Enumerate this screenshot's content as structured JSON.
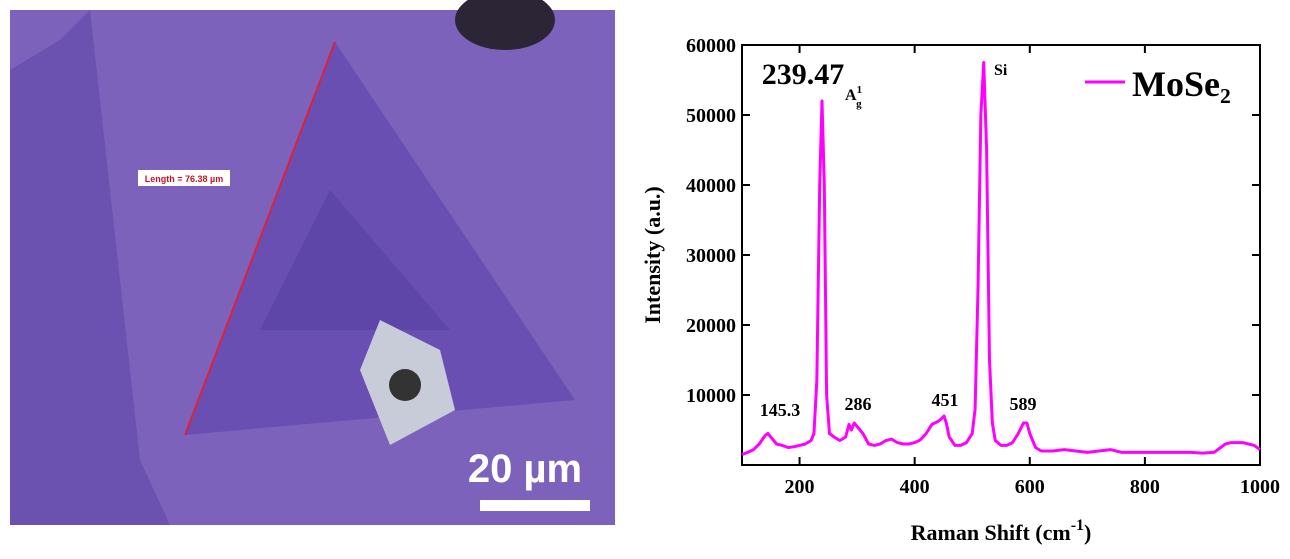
{
  "image": {
    "measurement_label": "Length = 76.38 µm",
    "scale_bar_label": "20 µm"
  },
  "chart_data": {
    "type": "line",
    "xlabel": {
      "text": "Raman Shift (cm",
      "sup": "-1",
      "tail": ")"
    },
    "ylabel": "Intensity (a.u.)",
    "x": [
      100,
      110,
      120,
      130,
      140,
      145,
      150,
      160,
      170,
      180,
      190,
      200,
      210,
      220,
      225,
      230,
      235,
      239,
      243,
      247,
      252,
      260,
      270,
      280,
      286,
      290,
      295,
      300,
      305,
      310,
      320,
      330,
      340,
      350,
      360,
      370,
      380,
      390,
      400,
      410,
      420,
      430,
      440,
      445,
      451,
      455,
      460,
      470,
      480,
      490,
      500,
      505,
      510,
      515,
      520,
      525,
      530,
      535,
      540,
      550,
      560,
      570,
      580,
      589,
      595,
      600,
      610,
      620,
      640,
      660,
      680,
      700,
      720,
      740,
      760,
      780,
      800,
      820,
      840,
      860,
      880,
      900,
      920,
      940,
      950,
      960,
      970,
      980,
      990,
      1000
    ],
    "series": [
      {
        "name": "MoSe₂",
        "color": "#ff00ff",
        "values": [
          1500,
          1800,
          2200,
          3000,
          4200,
          4500,
          4000,
          3000,
          2800,
          2500,
          2600,
          2800,
          3000,
          3500,
          4500,
          12000,
          40000,
          52000,
          40000,
          10000,
          4500,
          4000,
          3500,
          4000,
          5800,
          5000,
          6000,
          5500,
          5000,
          4500,
          3000,
          2800,
          3000,
          3500,
          3700,
          3200,
          3000,
          3000,
          3200,
          3600,
          4500,
          5800,
          6200,
          6500,
          7000,
          6000,
          4000,
          2800,
          2800,
          3200,
          4500,
          8000,
          25000,
          50000,
          57500,
          45000,
          15000,
          6000,
          3500,
          2800,
          2800,
          3200,
          4500,
          6000,
          6000,
          4500,
          2500,
          2000,
          2000,
          2200,
          2000,
          1800,
          2000,
          2200,
          1800,
          1800,
          1800,
          1800,
          1800,
          1800,
          1800,
          1700,
          1800,
          3000,
          3200,
          3200,
          3200,
          3000,
          2800,
          2200
        ]
      }
    ],
    "xlim": [
      100,
      1000
    ],
    "xticks": [
      200,
      400,
      600,
      800,
      1000
    ],
    "ylim": [
      0,
      60000
    ],
    "yticks": [
      10000,
      20000,
      30000,
      40000,
      50000,
      60000
    ],
    "annotations": [
      {
        "text": "239.47"
      },
      {
        "text": "A",
        "sup": "1",
        "sub": "g"
      },
      {
        "text": "Si"
      },
      {
        "text": "145.3"
      },
      {
        "text": "286"
      },
      {
        "text": "451"
      },
      {
        "text": "589"
      }
    ],
    "legend": "upper right"
  }
}
